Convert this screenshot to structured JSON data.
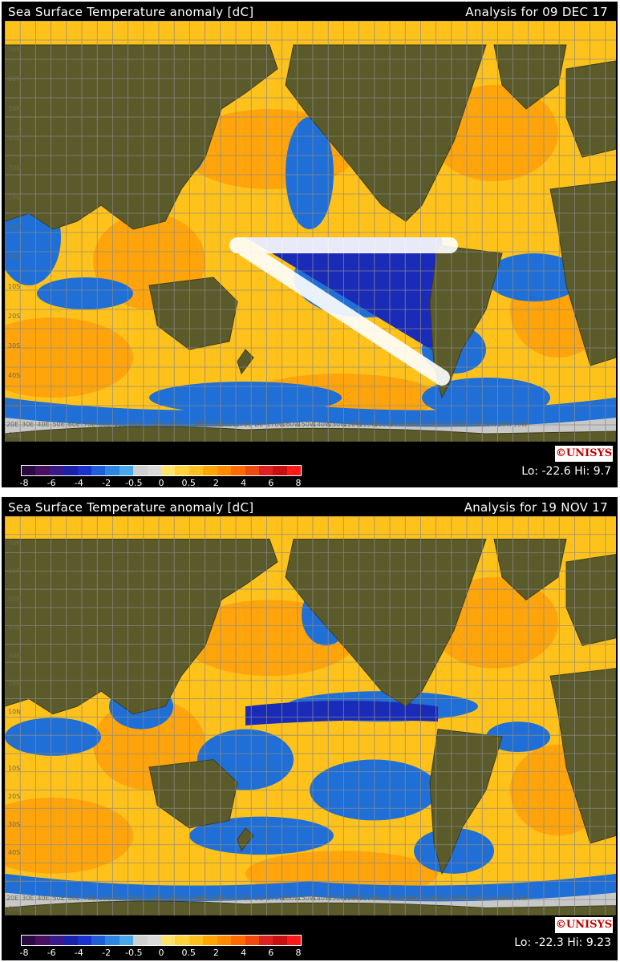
{
  "panels": [
    {
      "title": "Sea Surface Temperature anomaly [dC]",
      "date": "Analysis for 09 DEC 17",
      "lohi": "Lo: -22.6 Hi: 9.7",
      "logo": "©UNISYS"
    },
    {
      "title": "Sea Surface Temperature anomaly [dC]",
      "date": "Analysis for 19 NOV 17",
      "lohi": "Lo: -22.3 Hi: 9.23",
      "logo": "©UNISYS"
    }
  ],
  "legend": {
    "labels": [
      "-8",
      "-6",
      "-4",
      "-2",
      "-0.5",
      "0",
      "0.5",
      "2",
      "4",
      "6",
      "8"
    ],
    "colors": [
      "#2a0a40",
      "#4a1060",
      "#3a1a8a",
      "#1a22a8",
      "#1a33cc",
      "#1e5fd8",
      "#2e86de",
      "#48a8ea",
      "#cfcfcf",
      "#d9d9d9",
      "#ffe36a",
      "#ffd23c",
      "#ffbf1c",
      "#ffa500",
      "#ff8a00",
      "#ff6a00",
      "#ee4a10",
      "#dd2020",
      "#c81010",
      "#ff1a1a"
    ]
  },
  "lon_labels": [
    "20E",
    "30E",
    "40E",
    "50E",
    "60E",
    "70E",
    "80E",
    "90E",
    "100E",
    "110E",
    "120E",
    "130E",
    "140E",
    "150E",
    "160E",
    "170E",
    "DL",
    "170W",
    "160W",
    "150W",
    "140W",
    "130W",
    "120W",
    "110W",
    "100W",
    "90W",
    "80W",
    "70W",
    "60W",
    "50W",
    "40W",
    "30W",
    "20W",
    "10W"
  ],
  "lat_labels": [
    "70N",
    "60N",
    "50N",
    "40N",
    "30N",
    "20N",
    "10N",
    "EQ",
    "10S",
    "20S",
    "30S",
    "40S",
    "50S",
    "60S"
  ],
  "colors": {
    "land": "#5b5a2a",
    "ocean_warm": "#ffc21a",
    "ocean_hot": "#ff8c00",
    "ocean_cold": "#1f6fd6",
    "ocean_very_cold": "#1a2bb8",
    "ice": "#c8c8c8",
    "grid": "#8a8a8a",
    "highlight": "#ffffff"
  }
}
